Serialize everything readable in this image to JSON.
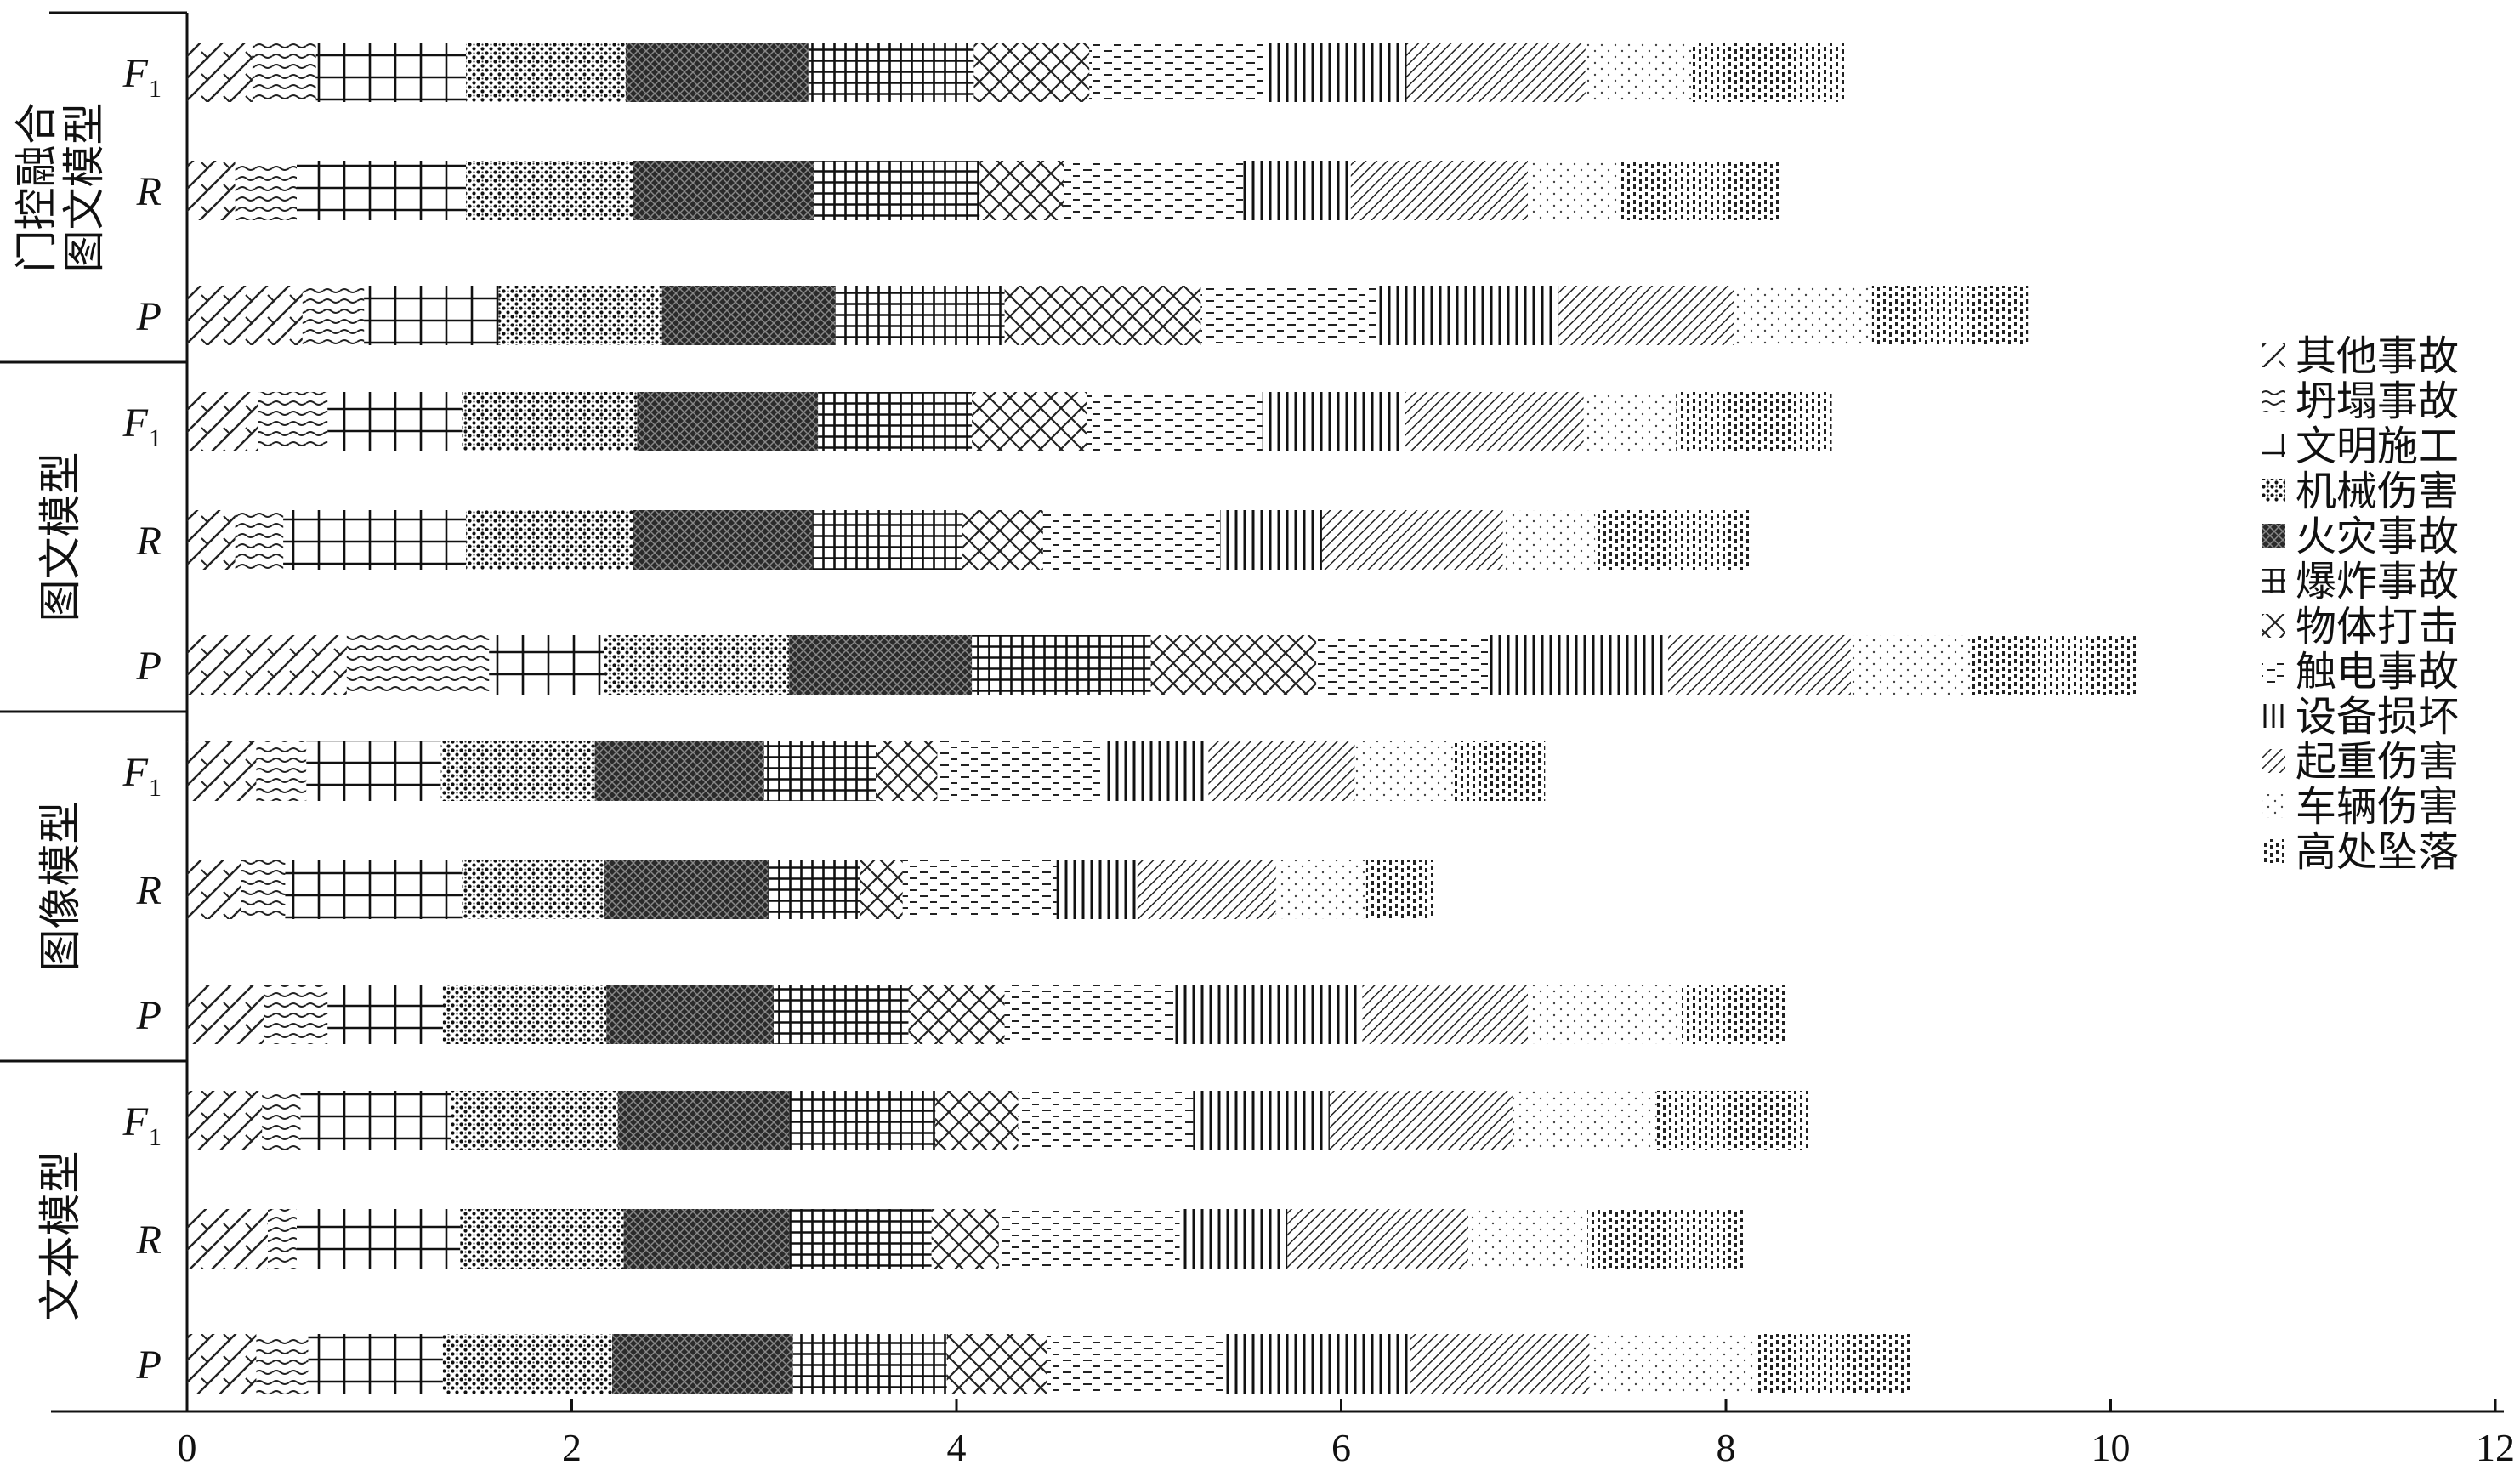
{
  "chart_data": {
    "type": "bar",
    "orientation": "horizontal",
    "stacked": true,
    "xlim": [
      0,
      12
    ],
    "xticks": [
      0,
      2,
      4,
      6,
      8,
      10,
      12
    ],
    "groups": [
      {
        "name": "门控融合图文模型",
        "rows": [
          {
            "metric": "F",
            "sub": "1",
            "values": [
              0.34,
              0.33,
              0.78,
              0.83,
              0.95,
              0.86,
              0.6,
              0.92,
              0.73,
              0.93,
              0.55,
              0.8
            ]
          },
          {
            "metric": "R",
            "sub": "",
            "values": [
              0.25,
              0.32,
              0.88,
              0.87,
              0.94,
              0.86,
              0.44,
              0.93,
              0.56,
              0.92,
              0.47,
              0.84
            ]
          },
          {
            "metric": "P",
            "sub": "",
            "values": [
              0.6,
              0.32,
              0.7,
              0.85,
              0.9,
              0.88,
              1.02,
              0.91,
              0.95,
              0.91,
              0.72,
              0.81
            ]
          }
        ]
      },
      {
        "name": "图文模型",
        "rows": [
          {
            "metric": "F",
            "sub": "1",
            "values": [
              0.37,
              0.36,
              0.7,
              0.91,
              0.94,
              0.8,
              0.6,
              0.91,
              0.74,
              0.93,
              0.48,
              0.81
            ]
          },
          {
            "metric": "R",
            "sub": "",
            "values": [
              0.25,
              0.25,
              0.95,
              0.87,
              0.93,
              0.78,
              0.42,
              0.92,
              0.53,
              0.94,
              0.48,
              0.8
            ]
          },
          {
            "metric": "P",
            "sub": "",
            "values": [
              0.83,
              0.74,
              0.6,
              0.96,
              0.95,
              0.93,
              0.86,
              0.9,
              0.93,
              0.95,
              0.62,
              0.87
            ]
          }
        ]
      },
      {
        "name": "图像模型",
        "rows": [
          {
            "metric": "F",
            "sub": "1",
            "values": [
              0.36,
              0.26,
              0.7,
              0.8,
              0.88,
              0.58,
              0.32,
              0.86,
              0.55,
              0.76,
              0.51,
              0.48
            ]
          },
          {
            "metric": "R",
            "sub": "",
            "values": [
              0.28,
              0.23,
              0.92,
              0.74,
              0.85,
              0.48,
              0.22,
              0.8,
              0.42,
              0.72,
              0.47,
              0.35
            ]
          },
          {
            "metric": "P",
            "sub": "",
            "values": [
              0.4,
              0.33,
              0.6,
              0.85,
              0.87,
              0.7,
              0.5,
              0.88,
              0.98,
              0.86,
              0.8,
              0.55
            ]
          }
        ]
      },
      {
        "name": "文本模型",
        "rows": [
          {
            "metric": "F",
            "sub": "1",
            "values": [
              0.39,
              0.2,
              0.78,
              0.87,
              0.89,
              0.76,
              0.43,
              0.91,
              0.71,
              0.95,
              0.75,
              0.8
            ]
          },
          {
            "metric": "R",
            "sub": "",
            "values": [
              0.42,
              0.15,
              0.85,
              0.85,
              0.86,
              0.74,
              0.35,
              0.94,
              0.56,
              0.94,
              0.62,
              0.81
            ]
          },
          {
            "metric": "P",
            "sub": "",
            "values": [
              0.36,
              0.27,
              0.7,
              0.88,
              0.94,
              0.8,
              0.52,
              0.92,
              0.97,
              0.93,
              0.87,
              0.81
            ]
          }
        ]
      }
    ],
    "legend": [
      {
        "label": "其他事故",
        "pattern": "diag-sparse"
      },
      {
        "label": "坍塌事故",
        "pattern": "wave"
      },
      {
        "label": "文明施工",
        "pattern": "grid-open"
      },
      {
        "label": "机械伤害",
        "pattern": "dots-dense"
      },
      {
        "label": "火灾事故",
        "pattern": "dark-cross"
      },
      {
        "label": "爆炸事故",
        "pattern": "grid-tight"
      },
      {
        "label": "物体打击",
        "pattern": "cross-hatch"
      },
      {
        "label": "触电事故",
        "pattern": "dashes"
      },
      {
        "label": "设备损坏",
        "pattern": "vertical"
      },
      {
        "label": "起重伤害",
        "pattern": "diag-dense"
      },
      {
        "label": "车辆伤害",
        "pattern": "dots-sparse"
      },
      {
        "label": "高处坠落",
        "pattern": "dot-columns"
      }
    ],
    "legend_position": "right"
  }
}
